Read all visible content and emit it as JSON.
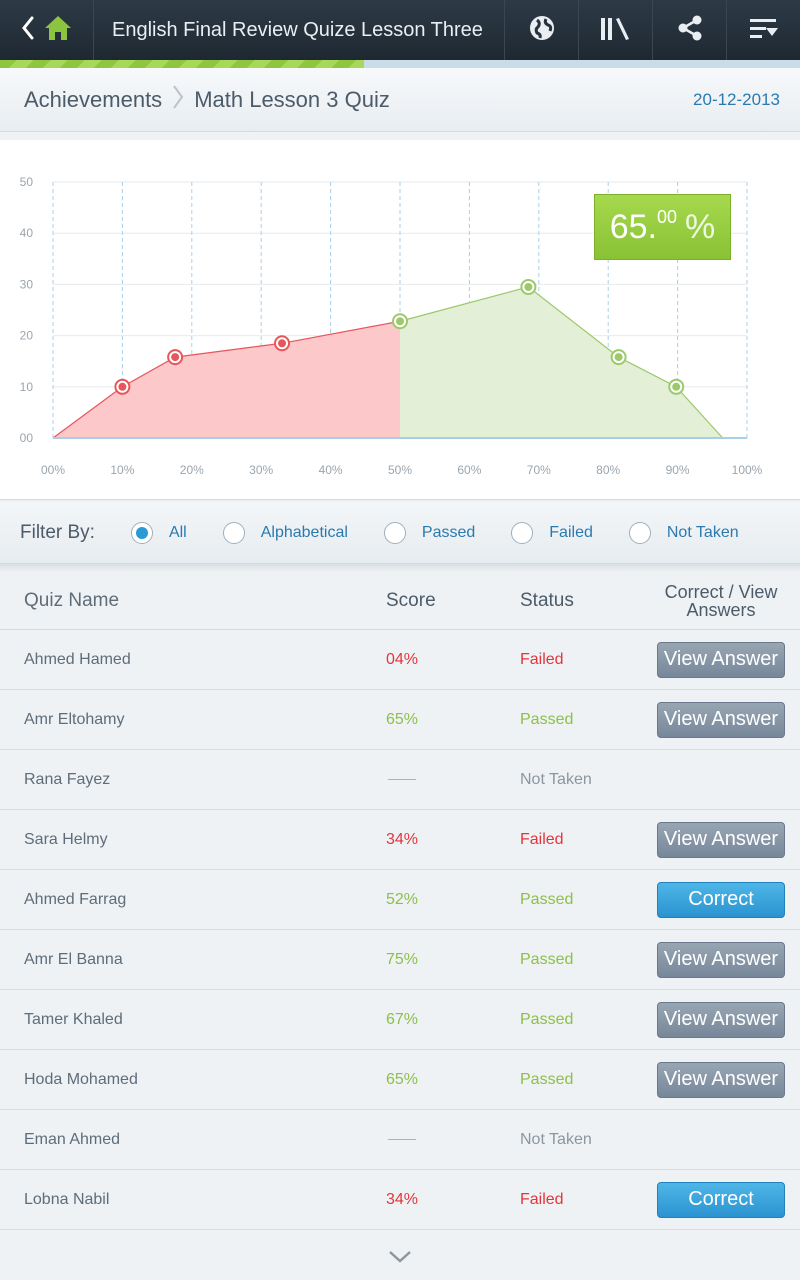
{
  "header": {
    "title": "English Final Review Quize Lesson Three",
    "progress": 0.455
  },
  "breadcrumb": {
    "root": "Achievements",
    "current": "Math Lesson 3 Quiz",
    "date": "20-12-2013"
  },
  "score_badge": {
    "whole": "65.",
    "decimal": "00",
    "unit": "%"
  },
  "chart_data": {
    "type": "area",
    "x_ticks": [
      "00%",
      "10%",
      "20%",
      "30%",
      "40%",
      "50%",
      "60%",
      "70%",
      "80%",
      "90%",
      "100%"
    ],
    "y_ticks": [
      "00",
      "10",
      "20",
      "30",
      "40",
      "50"
    ],
    "xlim": [
      0,
      100
    ],
    "ylim": [
      0,
      50
    ],
    "grid": true,
    "series": [
      {
        "color": "#e8555a",
        "fill": "#fcc8ca",
        "points": [
          [
            0,
            0
          ],
          [
            10,
            10
          ],
          [
            17.6,
            15.8
          ],
          [
            33,
            18.5
          ],
          [
            50,
            22.8
          ]
        ]
      },
      {
        "color": "#9cc96a",
        "fill": "#e3efd6",
        "points": [
          [
            50,
            22.8
          ],
          [
            68.5,
            29.5
          ],
          [
            81.5,
            15.8
          ],
          [
            89.8,
            10
          ],
          [
            96.5,
            0
          ]
        ]
      }
    ],
    "markers": [
      {
        "x": 10,
        "y": 10,
        "color": "#e8555a"
      },
      {
        "x": 17.6,
        "y": 15.8,
        "color": "#e8555a"
      },
      {
        "x": 33,
        "y": 18.5,
        "color": "#e8555a"
      },
      {
        "x": 50,
        "y": 22.8,
        "color": "#9cc96a"
      },
      {
        "x": 68.5,
        "y": 29.5,
        "color": "#9cc96a"
      },
      {
        "x": 81.5,
        "y": 15.8,
        "color": "#9cc96a"
      },
      {
        "x": 89.8,
        "y": 10,
        "color": "#9cc96a"
      }
    ]
  },
  "filter": {
    "label": "Filter By:",
    "options": [
      {
        "label": "All",
        "selected": true
      },
      {
        "label": "Alphabetical",
        "selected": false
      },
      {
        "label": "Passed",
        "selected": false
      },
      {
        "label": "Failed",
        "selected": false
      },
      {
        "label": "Not Taken",
        "selected": false
      }
    ]
  },
  "table": {
    "headers": {
      "name": "Quiz Name",
      "score": "Score",
      "status": "Status",
      "action_line1": "Correct / View",
      "action_line2": "Answers"
    },
    "rows": [
      {
        "name": "Ahmed Hamed",
        "score": "04%",
        "status": "Failed",
        "action": "View Answer"
      },
      {
        "name": "Amr Eltohamy",
        "score": "65%",
        "status": "Passed",
        "action": "View Answer"
      },
      {
        "name": "Rana Fayez",
        "score": "",
        "status": "Not Taken",
        "action": ""
      },
      {
        "name": "Sara Helmy",
        "score": "34%",
        "status": "Failed",
        "action": "View Answer"
      },
      {
        "name": "Ahmed Farrag",
        "score": "52%",
        "status": "Passed",
        "action": "Correct"
      },
      {
        "name": "Amr El Banna",
        "score": "75%",
        "status": "Passed",
        "action": "View Answer"
      },
      {
        "name": "Tamer Khaled",
        "score": "67%",
        "status": "Passed",
        "action": "View Answer"
      },
      {
        "name": "Hoda Mohamed",
        "score": "65%",
        "status": "Passed",
        "action": "View Answer"
      },
      {
        "name": "Eman Ahmed",
        "score": "",
        "status": "Not Taken",
        "action": ""
      },
      {
        "name": "Lobna Nabil",
        "score": "34%",
        "status": "Failed",
        "action": "Correct"
      }
    ]
  },
  "icons": {
    "back": "chevron-left-icon",
    "home": "home-icon",
    "globe": "globe-icon",
    "library": "library-icon",
    "share": "share-icon",
    "sort": "sort-menu-icon",
    "more": "chevron-down-icon"
  },
  "colors": {
    "fail": "#e0373d",
    "pass": "#8cc04a",
    "accent": "#2a9ad6"
  }
}
